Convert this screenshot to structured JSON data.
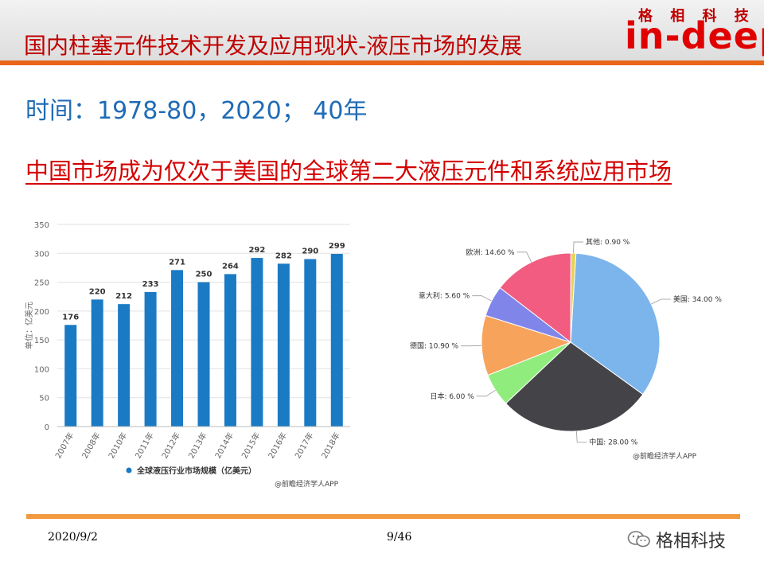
{
  "header": {
    "title": "国内柱塞元件技术开发及应用现状-液压市场的发展",
    "logo_cn": "格 相 科 技",
    "logo_en": "in-deep"
  },
  "time_line": "时间：1978-80，2020； 40年",
  "subtitle": "中国市场成为仅次于美国的全球第二大液压元件和系统应用市场",
  "chart_data": [
    {
      "type": "bar",
      "categories": [
        "2007年",
        "2008年",
        "2010年",
        "2011年",
        "2012年",
        "2013年",
        "2014年",
        "2015年",
        "2016年",
        "2017年",
        "2018年"
      ],
      "values": [
        176,
        220,
        212,
        233,
        271,
        250,
        264,
        292,
        282,
        290,
        299
      ],
      "ylabel": "单位：亿美元",
      "ylim": [
        0,
        350
      ],
      "yticks": [
        0,
        50,
        100,
        150,
        200,
        250,
        300,
        350
      ],
      "legend": "全球液压行业市场规模（亿美元）",
      "source": "@前瞻经济学人APP",
      "grid": true,
      "color": "#1a7ac4"
    },
    {
      "type": "pie",
      "slices": [
        {
          "label": "美国: 34.00 %",
          "value": 34.0,
          "color": "#7cb5ec"
        },
        {
          "label": "中国: 28.00 %",
          "value": 28.0,
          "color": "#434348"
        },
        {
          "label": "日本: 6.00 %",
          "value": 6.0,
          "color": "#90ed7d"
        },
        {
          "label": "德国: 10.90 %",
          "value": 10.9,
          "color": "#f7a35c"
        },
        {
          "label": "意大利: 5.60 %",
          "value": 5.6,
          "color": "#8085e9"
        },
        {
          "label": "欧洲: 14.60 %",
          "value": 14.6,
          "color": "#f15c80"
        },
        {
          "label": "其他: 0.90 %",
          "value": 0.9,
          "color": "#e4d354"
        }
      ],
      "source": "@前瞻经济学人APP"
    }
  ],
  "footer": {
    "date": "2020/9/2",
    "page": "9/46",
    "brand": "格相科技",
    "brand_icon": "wechat-icon"
  }
}
